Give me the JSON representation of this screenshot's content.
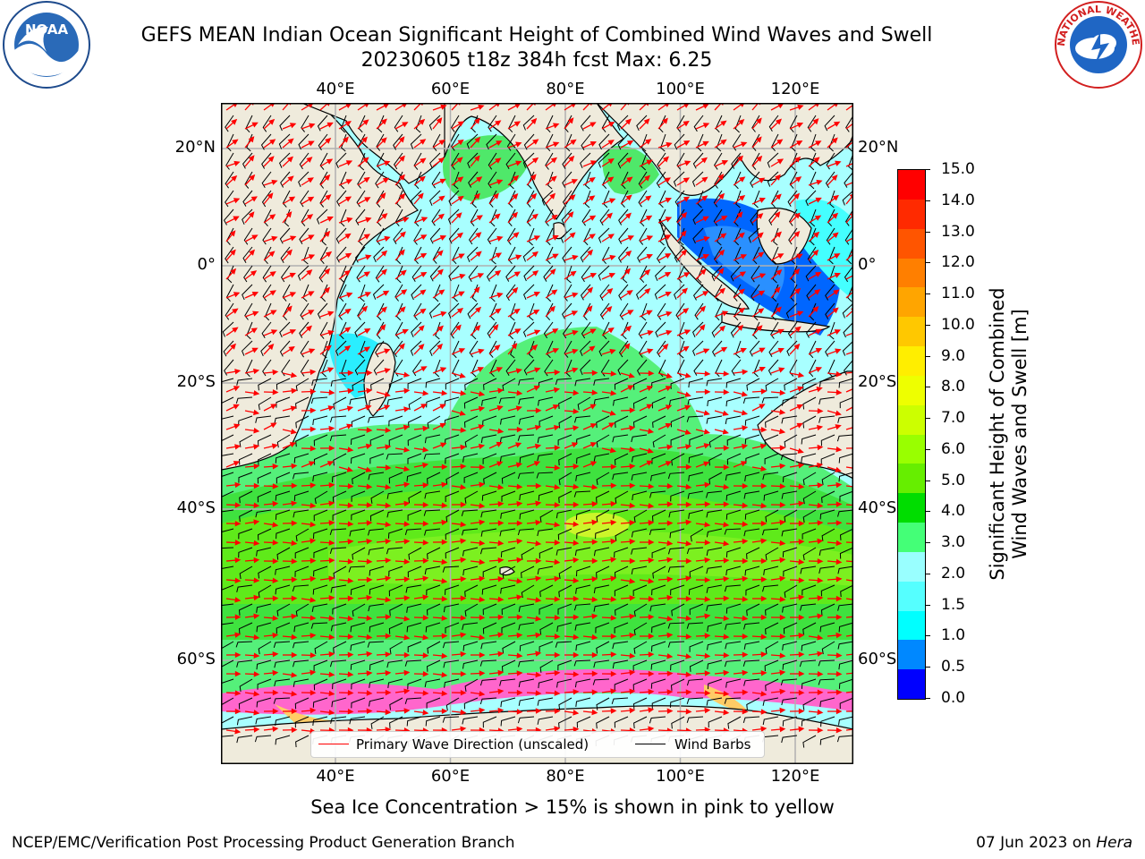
{
  "header": {
    "title_line1": "GEFS MEAN Indian Ocean Significant Height of Combined Wind Waves and Swell",
    "title_line2": "20230605 t18z 384h fcst   Max: 6.25"
  },
  "logos": {
    "left": {
      "text": "NOAA",
      "icon": "noaa-logo-icon"
    },
    "right": {
      "text": "NATIONAL WEATHER SERVICE",
      "icon": "nws-logo-icon"
    }
  },
  "map": {
    "lon_labels": [
      "40°E",
      "60°E",
      "80°E",
      "100°E",
      "120°E"
    ],
    "lon_values": [
      40,
      60,
      80,
      100,
      120
    ],
    "lat_labels": [
      "20°N",
      "0°",
      "20°S",
      "40°S",
      "60°S"
    ],
    "lat_values": [
      20,
      0,
      -20,
      -40,
      -60
    ],
    "lon_range": [
      20,
      130
    ],
    "lat_range": [
      -72,
      28
    ],
    "land_color": "#efebdc",
    "ice_colors": [
      "#ff00ff",
      "#ff66cc",
      "#ffcc66"
    ],
    "wave_arrow_color": "#ff0000",
    "barb_color": "#000000"
  },
  "legend": {
    "items": [
      {
        "label": "Primary Wave Direction (unscaled)",
        "color": "#ff0000"
      },
      {
        "label": "Wind Barbs",
        "color": "#000000"
      }
    ]
  },
  "colorbar": {
    "label_line1": "Significant Height of Combined",
    "label_line2": "Wind Waves and Swell [m]",
    "ticks": [
      "15.0",
      "14.0",
      "13.0",
      "12.0",
      "11.0",
      "10.0",
      "9.0",
      "8.0",
      "7.0",
      "6.0",
      "5.0",
      "4.0",
      "3.0",
      "2.0",
      "1.5",
      "1.0",
      "0.5",
      "0.0"
    ],
    "colors_top_to_bottom": [
      "#ff0000",
      "#ff2a00",
      "#ff5500",
      "#ff7f00",
      "#ffa500",
      "#ffc800",
      "#ffee00",
      "#eeff00",
      "#ccff00",
      "#99ff00",
      "#66ee00",
      "#00dd00",
      "#44ff77",
      "#99ffff",
      "#55ffff",
      "#00ffff",
      "#0088ff",
      "#0000ff"
    ]
  },
  "caption": "Sea Ice Concentration > 15% is shown in pink to yellow",
  "footer": {
    "left": "NCEP/EMC/Verification Post Processing Product Generation Branch",
    "right_date": "07 Jun 2023 on ",
    "right_machine": "Hera"
  }
}
